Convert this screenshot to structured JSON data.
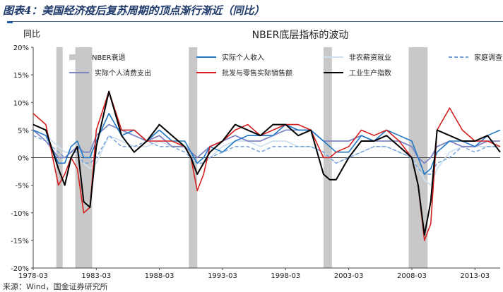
{
  "figure_title": "图表4：美国经济疫后复苏周期的顶点渐行渐近（同比）",
  "source_note": "来源：Wind，国金证券研究所",
  "colors": {
    "recession": "#c8c8c8",
    "personal_income": "#1f77c4",
    "nonfarm_payrolls": "#cfe0ee",
    "household_survey": "#6f9fd8",
    "consumer_spending": "#7f86c4",
    "wholesale_retail_sales": "#d41f1f",
    "industrial_production": "#000000",
    "title_text": "#1f3a6b"
  },
  "chart_data": {
    "type": "line",
    "title": "NBER底层指标的波动",
    "ylabel": "同比",
    "xlabel": "",
    "xlim": [
      "1978-03",
      "2015-03"
    ],
    "ylim": [
      -20,
      20
    ],
    "y_ticks": [
      "20%",
      "15%",
      "10%",
      "5%",
      "0%",
      "-5%",
      "-10%",
      "-15%",
      "-20%"
    ],
    "x_ticks": [
      "1978-03",
      "1983-03",
      "1988-03",
      "1993-03",
      "1998-03",
      "2003-03",
      "2008-03",
      "2013-03"
    ],
    "grid": false,
    "legend_position": "top",
    "recessions": [
      {
        "start": "1980-01",
        "end": "1980-07"
      },
      {
        "start": "1981-07",
        "end": "1982-11"
      },
      {
        "start": "1990-07",
        "end": "1991-03"
      },
      {
        "start": "2001-03",
        "end": "2001-11"
      },
      {
        "start": "2007-12",
        "end": "2009-06"
      }
    ],
    "legend": [
      {
        "label": "NBER衰退",
        "key": "recession"
      },
      {
        "label": "实际个人收入",
        "key": "personal_income"
      },
      {
        "label": "非农薪资就业",
        "key": "nonfarm_payrolls"
      },
      {
        "label": "家庭调查",
        "key": "household_survey"
      },
      {
        "label": "实际个人消费支出",
        "key": "consumer_spending"
      },
      {
        "label": "批发与零售实际销售额",
        "key": "wholesale_retail_sales"
      },
      {
        "label": "工业生产指数",
        "key": "industrial_production"
      }
    ],
    "x": [
      "1978-03",
      "1979-03",
      "1980-03",
      "1980-09",
      "1981-03",
      "1981-09",
      "1982-03",
      "1982-09",
      "1983-03",
      "1984-03",
      "1985-03",
      "1986-03",
      "1987-03",
      "1988-03",
      "1989-03",
      "1990-03",
      "1990-09",
      "1991-03",
      "1991-09",
      "1992-03",
      "1993-03",
      "1994-03",
      "1995-03",
      "1996-03",
      "1997-03",
      "1998-03",
      "1999-03",
      "2000-03",
      "2001-03",
      "2001-09",
      "2002-03",
      "2003-03",
      "2004-03",
      "2005-03",
      "2006-03",
      "2007-03",
      "2008-03",
      "2008-09",
      "2009-03",
      "2009-09",
      "2010-03",
      "2011-03",
      "2012-03",
      "2013-03",
      "2014-03",
      "2015-03"
    ],
    "series": [
      {
        "name": "实际个人收入",
        "key": "personal_income",
        "values": [
          5,
          4,
          -1,
          -1,
          2,
          3,
          0,
          0,
          3,
          8,
          4,
          5,
          3,
          5,
          3,
          3,
          1,
          -1,
          0,
          2,
          1,
          3,
          4,
          4,
          4,
          6,
          5,
          5,
          3,
          2,
          1,
          1,
          4,
          3,
          5,
          4,
          3,
          0,
          -3,
          -2,
          1,
          3,
          3,
          2,
          4,
          5
        ]
      },
      {
        "name": "非农薪资就业",
        "key": "nonfarm_payrolls",
        "values": [
          5,
          4,
          2,
          1,
          1,
          1,
          -1,
          -2,
          -1,
          4,
          3,
          2,
          2,
          3,
          2,
          2,
          1,
          -1,
          -1,
          0,
          2,
          3,
          3,
          2,
          3,
          3,
          2,
          2,
          1,
          0,
          -1,
          0,
          1,
          2,
          2,
          1,
          0,
          -2,
          -4,
          -5,
          -2,
          1,
          2,
          2,
          2,
          2
        ]
      },
      {
        "name": "家庭调查",
        "key": "household_survey",
        "values": [
          4,
          3,
          1,
          0,
          1,
          1,
          -1,
          -1,
          0,
          4,
          2,
          2,
          3,
          2,
          2,
          1,
          0,
          -1,
          -1,
          0,
          1,
          2,
          2,
          1,
          2,
          2,
          2,
          2,
          1,
          0,
          -1,
          0,
          1,
          2,
          2,
          1,
          0,
          -2,
          -3,
          -3,
          -1,
          0,
          2,
          1,
          2,
          2
        ]
      },
      {
        "name": "实际个人消费支出",
        "key": "consumer_spending",
        "values": [
          5,
          3,
          0,
          0,
          1,
          2,
          1,
          1,
          4,
          6,
          5,
          4,
          3,
          4,
          2,
          2,
          1,
          0,
          1,
          2,
          3,
          4,
          3,
          3,
          4,
          5,
          5,
          5,
          3,
          3,
          3,
          3,
          4,
          3,
          3,
          3,
          2,
          0,
          -1,
          0,
          2,
          3,
          2,
          2,
          3,
          3
        ]
      },
      {
        "name": "批发与零售实际销售额",
        "key": "wholesale_retail_sales",
        "values": [
          8,
          6,
          -5,
          -3,
          0,
          -2,
          -10,
          -9,
          5,
          12,
          5,
          5,
          3,
          3,
          3,
          2,
          0,
          -6,
          -3,
          2,
          3,
          5,
          6,
          4,
          5,
          6,
          6,
          5,
          0,
          0,
          1,
          2,
          5,
          4,
          5,
          3,
          0,
          -5,
          -15,
          -12,
          5,
          9,
          5,
          3,
          3,
          2
        ]
      },
      {
        "name": "工业生产指数",
        "key": "industrial_production",
        "values": [
          6,
          5,
          -2,
          -5,
          0,
          2,
          -8,
          -9,
          2,
          12,
          4,
          1,
          3,
          6,
          4,
          2,
          0,
          -3,
          -1,
          1,
          3,
          6,
          5,
          4,
          6,
          6,
          4,
          5,
          -3,
          -4,
          -4,
          0,
          3,
          3,
          4,
          2,
          0,
          -5,
          -14,
          -8,
          5,
          4,
          3,
          3,
          4,
          1
        ]
      }
    ]
  }
}
